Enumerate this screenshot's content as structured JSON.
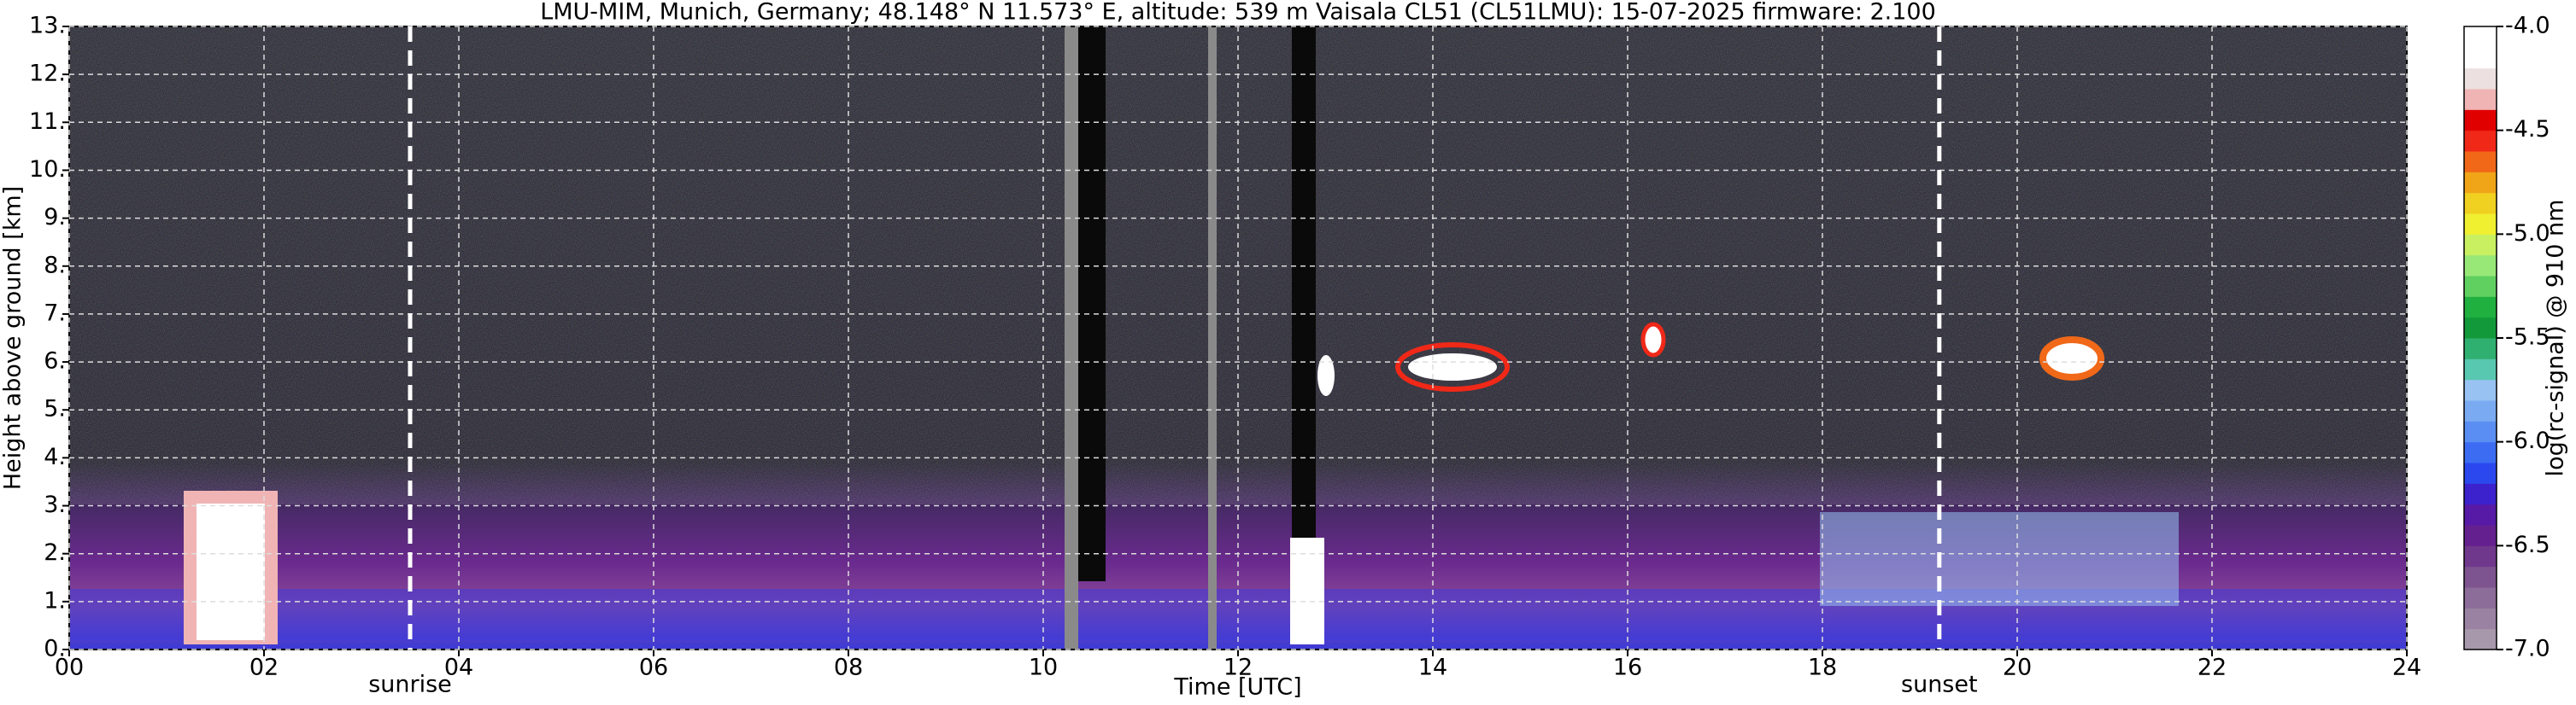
{
  "chart_data": {
    "type": "heatmap",
    "title": "LMU-MIM, Munich, Germany; 48.148° N 11.573° E, altitude: 539 m    Vaisala CL51 (CL51LMU): 15-07-2025    firmware: 2.100",
    "x_label": "Time [UTC]",
    "y_label": "Height above ground [km]",
    "xlim": [
      0,
      24
    ],
    "xticks": [
      {
        "value": 0,
        "label": "00"
      },
      {
        "value": 2,
        "label": "02"
      },
      {
        "value": 4,
        "label": "04"
      },
      {
        "value": 6,
        "label": "06"
      },
      {
        "value": 8,
        "label": "08"
      },
      {
        "value": 10,
        "label": "10"
      },
      {
        "value": 12,
        "label": "12"
      },
      {
        "value": 14,
        "label": "14"
      },
      {
        "value": 16,
        "label": "16"
      },
      {
        "value": 18,
        "label": "18"
      },
      {
        "value": 20,
        "label": "20"
      },
      {
        "value": 22,
        "label": "22"
      },
      {
        "value": 24,
        "label": "24"
      }
    ],
    "ylim": [
      0,
      13
    ],
    "yticks": [
      {
        "value": 0,
        "label": "0."
      },
      {
        "value": 1,
        "label": "1."
      },
      {
        "value": 2,
        "label": "2."
      },
      {
        "value": 3,
        "label": "3."
      },
      {
        "value": 4,
        "label": "4."
      },
      {
        "value": 5,
        "label": "5."
      },
      {
        "value": 6,
        "label": "6."
      },
      {
        "value": 7,
        "label": "7."
      },
      {
        "value": 8,
        "label": "8."
      },
      {
        "value": 9,
        "label": "9."
      },
      {
        "value": 10,
        "label": "10."
      },
      {
        "value": 11,
        "label": "11."
      },
      {
        "value": 12,
        "label": "12."
      },
      {
        "value": 13,
        "label": "13."
      }
    ],
    "grid": true,
    "annotations": [
      {
        "x": 3.5,
        "label": "sunrise"
      },
      {
        "x": 19.2,
        "label": "sunset"
      }
    ],
    "colorbar": {
      "label": "log(rc-signal) @ 910 nm",
      "lim": [
        -7.0,
        -4.0
      ],
      "ticks": [
        {
          "value": -7.0,
          "label": "-7.0"
        },
        {
          "value": -6.5,
          "label": "-6.5"
        },
        {
          "value": -6.0,
          "label": "-6.0"
        },
        {
          "value": -5.5,
          "label": "-5.5"
        },
        {
          "value": -5.0,
          "label": "-5.0"
        },
        {
          "value": -4.5,
          "label": "-4.5"
        },
        {
          "value": -4.0,
          "label": "-4.0"
        }
      ],
      "colors": [
        "#a898ac",
        "#9a82a2",
        "#8c6c98",
        "#7e5490",
        "#70388c",
        "#64208e",
        "#561aa6",
        "#3c22cc",
        "#2a48ee",
        "#3c6cf2",
        "#5a8ef2",
        "#7aaaf2",
        "#98c2f2",
        "#58c8b0",
        "#30b070",
        "#129a3a",
        "#20b040",
        "#60d060",
        "#98e878",
        "#c8f060",
        "#f0f030",
        "#f0d020",
        "#f0a418",
        "#f06818",
        "#f02818",
        "#e00000",
        "#f0b4b4",
        "#ece0e0",
        "#ffffff",
        "#ffffff"
      ]
    }
  }
}
